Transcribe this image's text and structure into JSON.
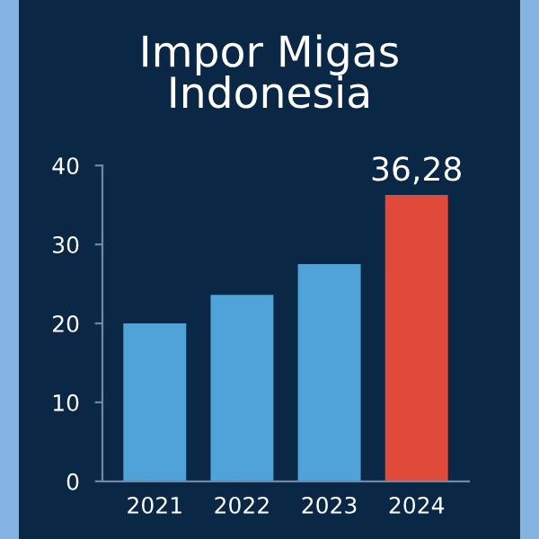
{
  "chart_data": {
    "type": "bar",
    "title": "Impor Migas\nIndonesia",
    "categories": [
      "2021",
      "2022",
      "2023",
      "2024"
    ],
    "values": [
      20.0,
      23.6,
      27.5,
      36.28
    ],
    "colors": [
      "#4fa3d8",
      "#4fa3d8",
      "#4fa3d8",
      "#e04a3a"
    ],
    "value_labels": [
      null,
      null,
      null,
      "36,28"
    ],
    "ylim": [
      0,
      40
    ],
    "yticks": [
      0,
      10,
      20,
      30,
      40
    ]
  }
}
